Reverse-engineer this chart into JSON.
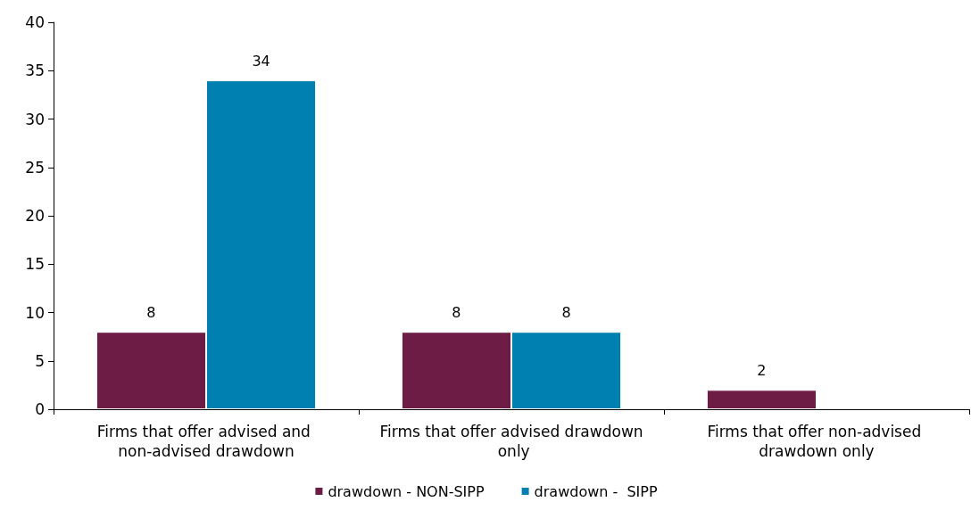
{
  "chart_data": {
    "type": "bar",
    "categories": [
      "Firms that offer advised and non-advised drawdown",
      "Firms that offer advised drawdown only",
      "Firms that offer non-advised drawdown only"
    ],
    "series": [
      {
        "name": "drawdown - NON-SIPP",
        "color": "#6d1c45",
        "values": [
          8,
          8,
          2
        ]
      },
      {
        "name": "drawdown -  SIPP",
        "color": "#0080b0",
        "values": [
          34,
          8,
          null
        ]
      }
    ],
    "ylim": [
      0,
      40
    ],
    "yticks": [
      0,
      5,
      10,
      15,
      20,
      25,
      30,
      35,
      40
    ],
    "grid": false,
    "legend": "bottom",
    "data_labels": true
  }
}
